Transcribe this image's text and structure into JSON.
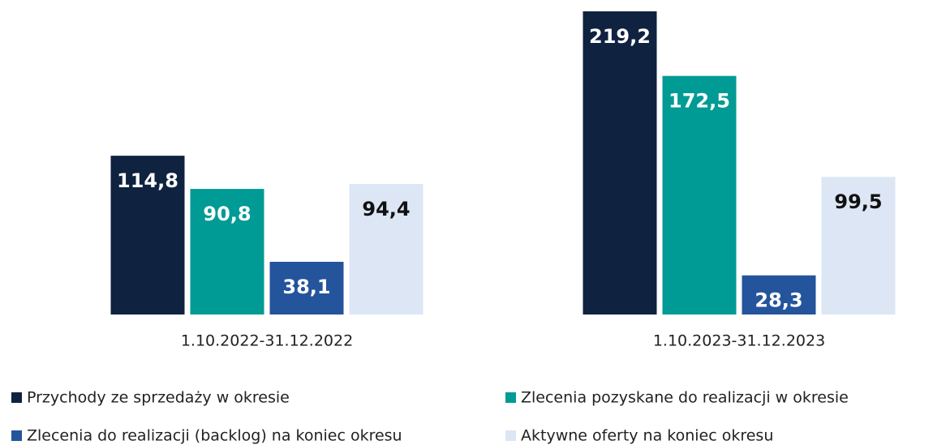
{
  "chart_data": {
    "type": "bar",
    "categories": [
      "1.10.2022-31.12.2022",
      "1.10.2023-31.12.2023"
    ],
    "series": [
      {
        "name": "Przychody ze sprzedaży w okresie",
        "color": "#0f2240",
        "values": [
          114.8,
          219.2
        ],
        "value_labels": [
          "114,8",
          "219,2"
        ]
      },
      {
        "name": "Zlecenia pozyskane do realizacji w okresie",
        "color": "#009b94",
        "values": [
          90.8,
          172.5
        ],
        "value_labels": [
          "90,8",
          "172,5"
        ]
      },
      {
        "name": "Zlecenia do realizacji (backlog) na koniec okresu",
        "color": "#24549c",
        "values": [
          38.1,
          28.3
        ],
        "value_labels": [
          "38,1",
          "28,3"
        ]
      },
      {
        "name": "Aktywne oferty na koniec okresu",
        "color": "#dce6f5",
        "values": [
          94.4,
          99.5
        ],
        "value_labels": [
          "94,4",
          "99,5"
        ]
      }
    ]
  }
}
